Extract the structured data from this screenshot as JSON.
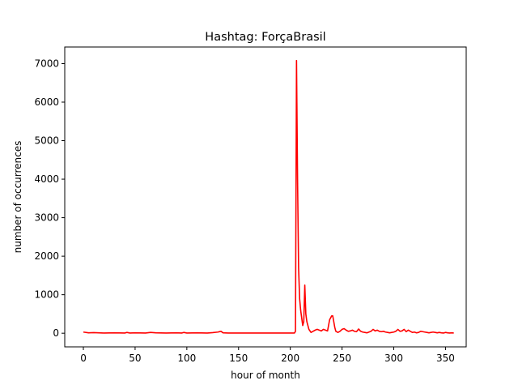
{
  "chart_data": {
    "type": "line",
    "title": "Hashtag: ForçaBrasil",
    "xlabel": "hour of month",
    "ylabel": "number of occurrences",
    "xlim": [
      -18,
      370
    ],
    "ylim": [
      -354,
      7431
    ],
    "xticks": [
      0,
      50,
      100,
      150,
      200,
      250,
      300,
      350
    ],
    "yticks": [
      0,
      1000,
      2000,
      3000,
      4000,
      5000,
      6000,
      7000
    ],
    "grid": false,
    "color": "#ff0000",
    "series": [
      {
        "x": [
          0,
          5,
          10,
          20,
          30,
          40,
          42,
          45,
          50,
          60,
          65,
          70,
          80,
          90,
          95,
          97,
          100,
          110,
          120,
          125,
          130,
          133,
          135,
          140,
          150,
          160,
          170,
          180,
          190,
          200,
          204,
          205,
          206,
          207,
          208,
          209,
          210,
          211,
          212,
          213,
          214,
          215,
          216,
          217,
          218,
          220,
          222,
          224,
          226,
          228,
          230,
          232,
          234,
          236,
          238,
          240,
          241,
          242,
          243,
          244,
          246,
          248,
          250,
          252,
          254,
          256,
          258,
          260,
          262,
          264,
          266,
          268,
          270,
          272,
          274,
          276,
          278,
          280,
          282,
          284,
          286,
          288,
          290,
          292,
          294,
          296,
          298,
          300,
          302,
          304,
          306,
          308,
          310,
          312,
          314,
          316,
          318,
          320,
          322,
          324,
          326,
          328,
          330,
          332,
          334,
          336,
          338,
          340,
          342,
          344,
          346,
          348,
          350,
          352,
          354,
          356,
          358
        ],
        "y": [
          30,
          10,
          15,
          5,
          10,
          5,
          20,
          5,
          10,
          5,
          20,
          10,
          5,
          10,
          5,
          20,
          5,
          10,
          5,
          15,
          30,
          50,
          10,
          5,
          5,
          5,
          5,
          5,
          5,
          5,
          5,
          50,
          7080,
          4000,
          1700,
          900,
          600,
          400,
          200,
          300,
          1250,
          500,
          300,
          200,
          100,
          20,
          50,
          80,
          100,
          80,
          60,
          100,
          80,
          60,
          350,
          450,
          450,
          300,
          150,
          50,
          20,
          50,
          100,
          120,
          80,
          50,
          60,
          80,
          50,
          40,
          110,
          50,
          30,
          20,
          10,
          30,
          50,
          100,
          60,
          80,
          50,
          40,
          50,
          30,
          20,
          10,
          20,
          30,
          50,
          100,
          50,
          60,
          100,
          40,
          80,
          50,
          20,
          30,
          10,
          20,
          50,
          40,
          30,
          20,
          10,
          20,
          30,
          20,
          10,
          20,
          10,
          5,
          20,
          10,
          5,
          10,
          5
        ]
      }
    ]
  }
}
